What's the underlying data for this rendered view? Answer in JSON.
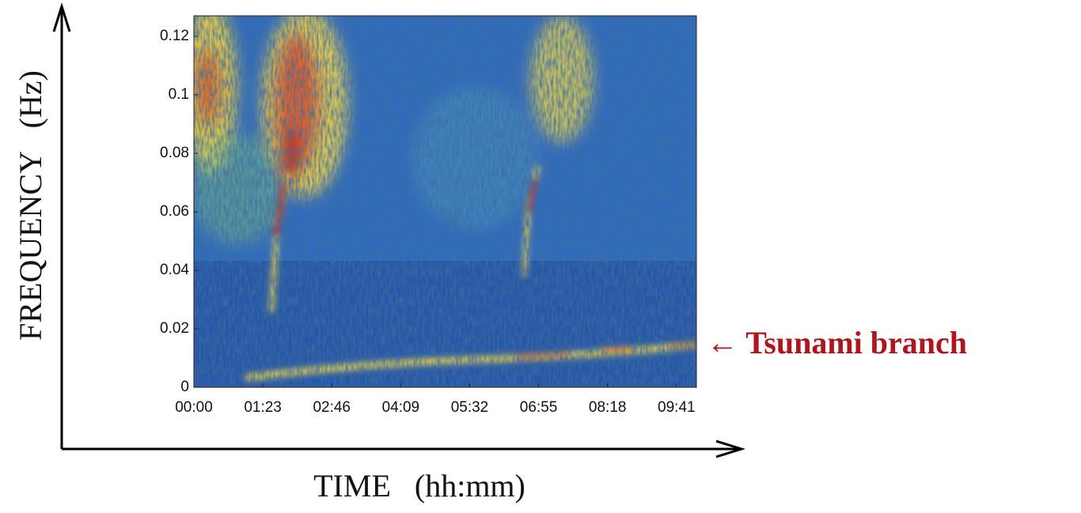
{
  "chart_data": {
    "type": "spectrogram",
    "x_label": "TIME   (hh:mm)",
    "y_label": "FREQUENCY   (Hz)",
    "annotation": "← Tsunami branch",
    "xlim": [
      0,
      605
    ],
    "xticks": [
      {
        "value": 0,
        "label": "00:00"
      },
      {
        "value": 83,
        "label": "01:23"
      },
      {
        "value": 166,
        "label": "02:46"
      },
      {
        "value": 249,
        "label": "04:09"
      },
      {
        "value": 332,
        "label": "05:32"
      },
      {
        "value": 415,
        "label": "06:55"
      },
      {
        "value": 498,
        "label": "08:18"
      },
      {
        "value": 581,
        "label": "09:41"
      }
    ],
    "ylim": [
      0,
      0.127
    ],
    "yticks": [
      0,
      0.02,
      0.04,
      0.06,
      0.08,
      0.1,
      0.12
    ]
  }
}
